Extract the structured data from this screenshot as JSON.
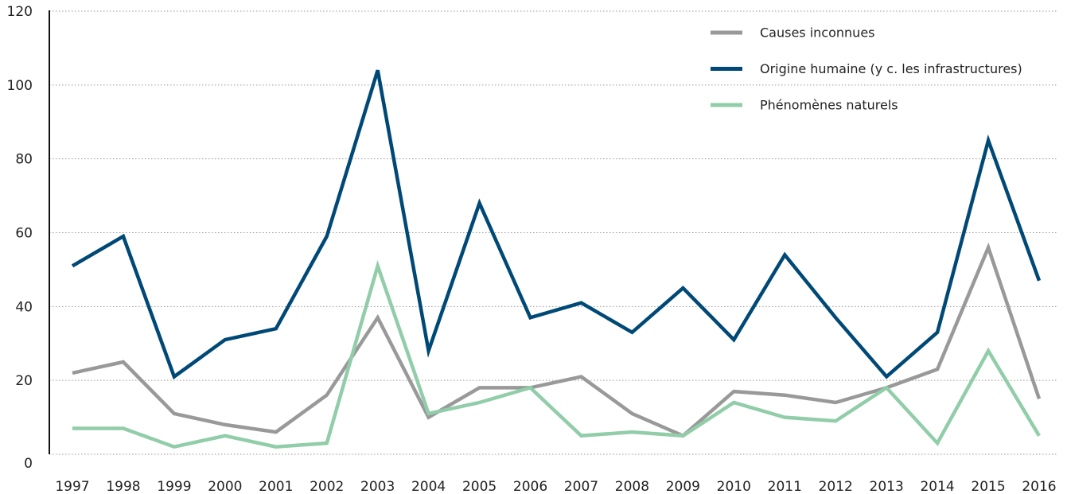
{
  "chart_data": {
    "type": "line",
    "title": "",
    "xlabel": "",
    "ylabel": "",
    "x": [
      "1997",
      "1998",
      "1999",
      "2000",
      "2001",
      "2002",
      "2003",
      "2004",
      "2005",
      "2006",
      "2007",
      "2008",
      "2009",
      "2010",
      "2011",
      "2012",
      "2013",
      "2014",
      "2015",
      "2016"
    ],
    "ylim": [
      0,
      120
    ],
    "yticks": [
      "0",
      "20",
      "40",
      "60",
      "80",
      "100",
      "120"
    ],
    "grid": "horizontal dotted",
    "legend_position": "top-right",
    "series": [
      {
        "name": "Causes inconnues",
        "color": "#999999",
        "values": [
          22,
          25,
          11,
          8,
          6,
          16,
          37,
          10,
          18,
          18,
          21,
          11,
          5,
          17,
          16,
          14,
          18,
          23,
          56,
          15
        ]
      },
      {
        "name": "Origine humaine (y c. les infrastructures)",
        "color": "#004976",
        "values": [
          51,
          59,
          21,
          31,
          34,
          59,
          104,
          28,
          68,
          37,
          41,
          33,
          45,
          31,
          54,
          37,
          21,
          33,
          85,
          47
        ]
      },
      {
        "name": "Phénomènes naturels",
        "color": "#91cda9",
        "values": [
          7,
          7,
          2,
          5,
          2,
          3,
          51,
          11,
          14,
          18,
          5,
          6,
          5,
          14,
          10,
          9,
          18,
          3,
          28,
          5
        ]
      }
    ]
  }
}
